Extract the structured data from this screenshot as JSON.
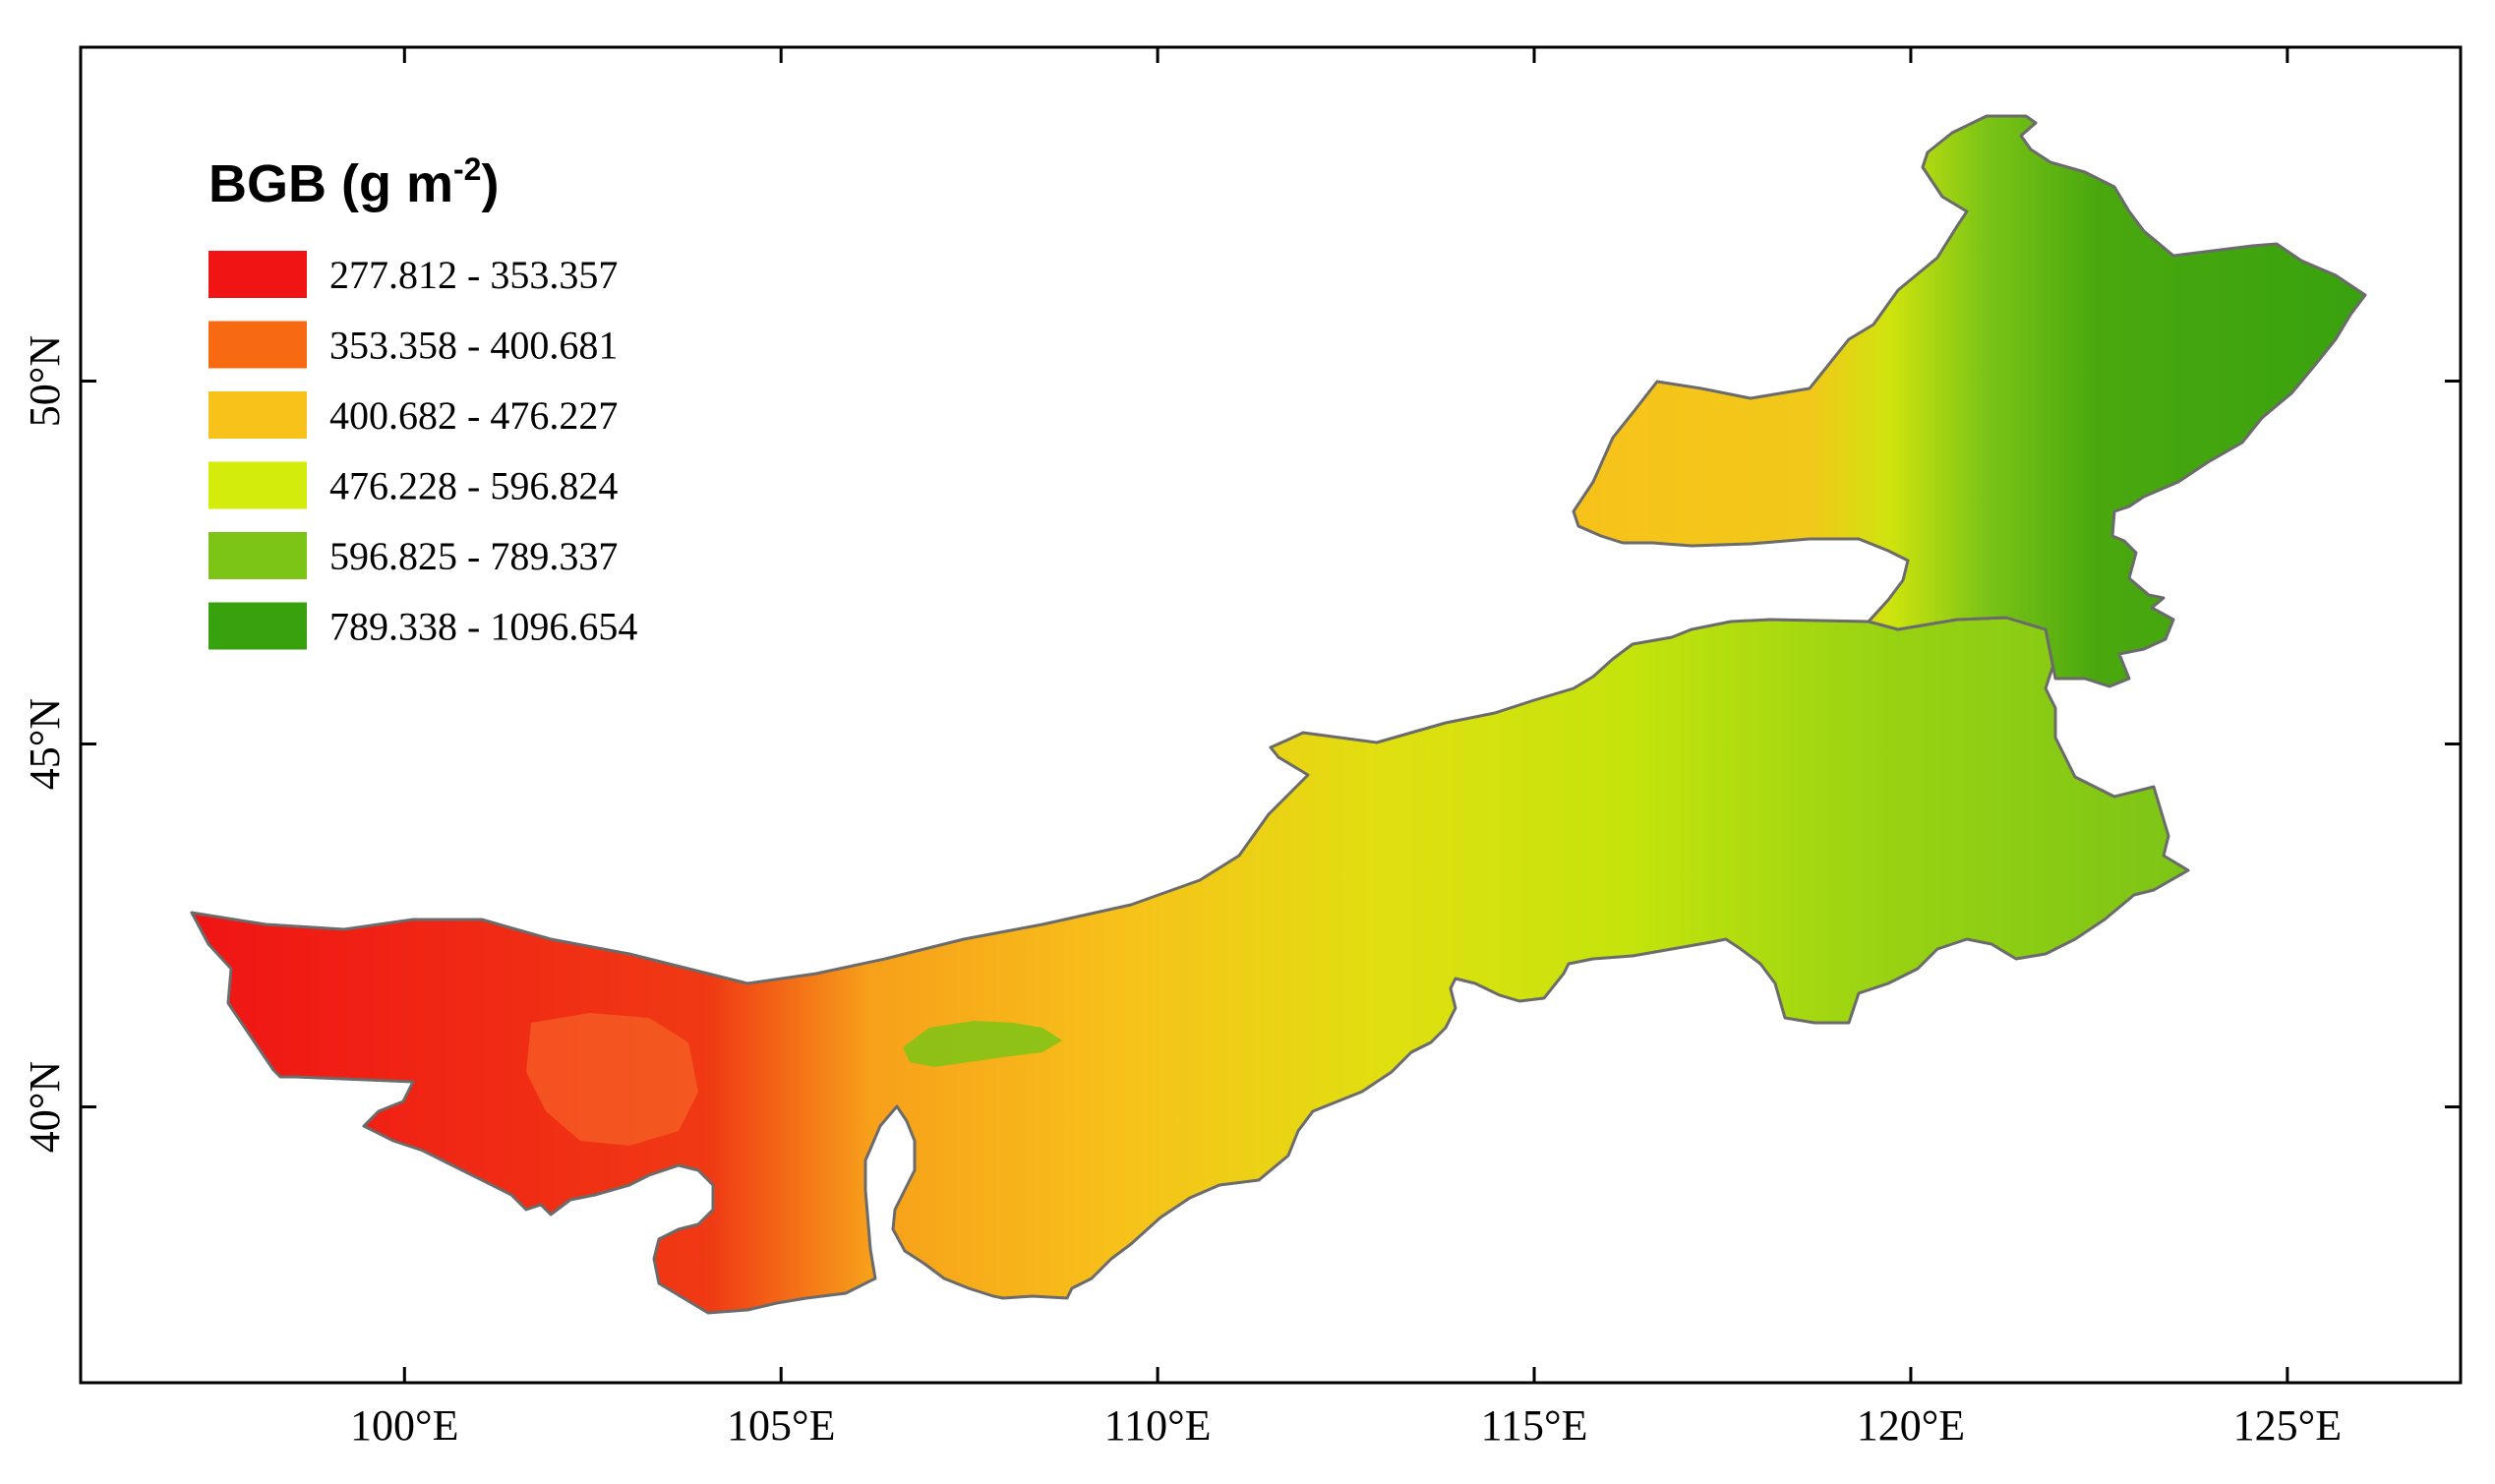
{
  "legend": {
    "title_main": "BGB (g m",
    "title_sup": "-2",
    "title_close": ")",
    "classes": [
      {
        "label": "277.812 - 353.357",
        "color": "#f01414"
      },
      {
        "label": "353.358 - 400.681",
        "color": "#f76a12"
      },
      {
        "label": "400.682 - 476.227",
        "color": "#f7c21a"
      },
      {
        "label": "476.228 - 596.824",
        "color": "#d4ec0c"
      },
      {
        "label": "596.825 - 789.337",
        "color": "#7cc416"
      },
      {
        "label": "789.338 - 1096.654",
        "color": "#38a20e"
      }
    ]
  },
  "axes": {
    "x_ticks": [
      {
        "lon": 100,
        "label": "100°E"
      },
      {
        "lon": 105,
        "label": "105°E"
      },
      {
        "lon": 110,
        "label": "110°E"
      },
      {
        "lon": 115,
        "label": "115°E"
      },
      {
        "lon": 120,
        "label": "120°E"
      },
      {
        "lon": 125,
        "label": "125°E"
      }
    ],
    "y_ticks": [
      {
        "lat": 50,
        "label": "50°N"
      },
      {
        "lat": 45,
        "label": "45°N"
      },
      {
        "lat": 40,
        "label": "40°N"
      }
    ],
    "lon_range": [
      95.7,
      127.3
    ],
    "lat_range": [
      36.2,
      54.6
    ]
  },
  "map": {
    "outline_color": "#6b6b6b"
  }
}
